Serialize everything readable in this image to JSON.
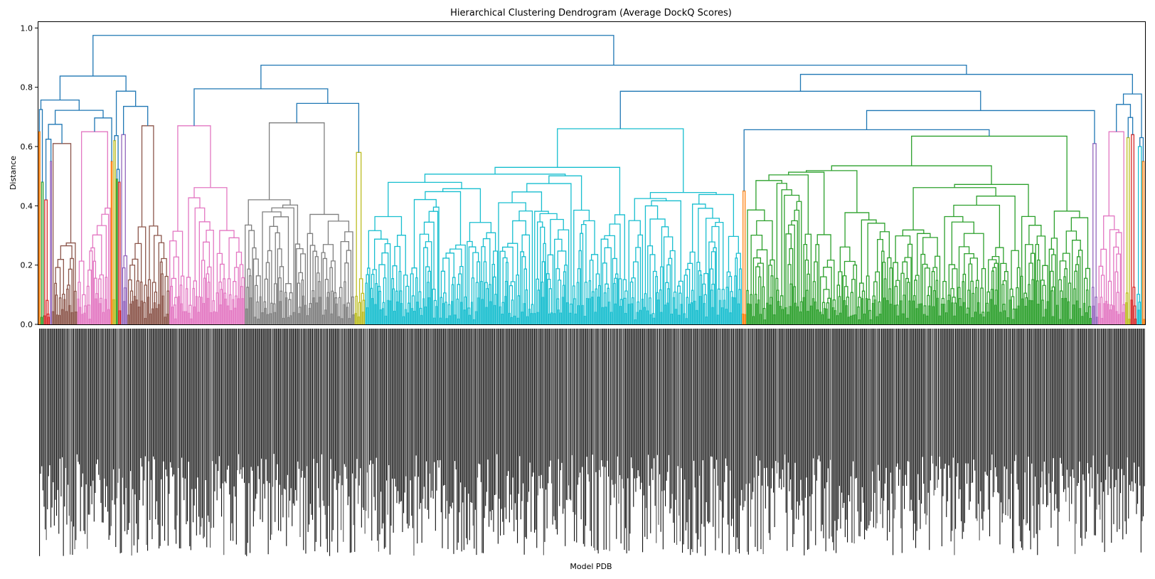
{
  "chart_data": {
    "type": "dendrogram",
    "title": "Hierarchical Clustering Dendrogram (Average DockQ Scores)",
    "xlabel": "Model PDB",
    "ylabel": "Distance",
    "ylim": [
      0,
      1.02
    ],
    "yticks": [
      0.0,
      0.2,
      0.4,
      0.6,
      0.8,
      1.0
    ],
    "ytick_labels": [
      "0.0",
      "0.2",
      "0.4",
      "0.6",
      "0.8",
      "1.0"
    ],
    "grid": false,
    "legend": "none",
    "root_height": 0.975,
    "cluster_threshold": 0.68,
    "colors": {
      "above_threshold": "#1f77b4",
      "orange": "#ff7f0e",
      "green": "#2ca02c",
      "red": "#d62728",
      "purple": "#9467bd",
      "brown": "#8c564b",
      "pink": "#e377c2",
      "gray": "#7f7f7f",
      "olive": "#bcbd22",
      "cyan": "#17becf"
    },
    "clusters": [
      {
        "color": "orange",
        "leaves": 2,
        "height": 0.65
      },
      {
        "color": "green",
        "leaves": 3,
        "height": 0.48
      },
      {
        "color": "red",
        "leaves": 6,
        "height": 0.42
      },
      {
        "color": "purple",
        "leaves": 2,
        "height": 0.55
      },
      {
        "color": "brown",
        "leaves": 24,
        "height": 0.61
      },
      {
        "color": "pink",
        "leaves": 32,
        "height": 0.65
      },
      {
        "color": "orange",
        "leaves": 2,
        "height": 0.55
      },
      {
        "color": "olive",
        "leaves": 3,
        "height": 0.62
      },
      {
        "color": "green",
        "leaves": 2,
        "height": 0.49
      },
      {
        "color": "red",
        "leaves": 3,
        "height": 0.48
      },
      {
        "color": "purple",
        "leaves": 6,
        "height": 0.64
      },
      {
        "color": "brown",
        "leaves": 40,
        "height": 0.67
      },
      {
        "color": "pink",
        "leaves": 72,
        "height": 0.67
      },
      {
        "color": "gray",
        "leaves": 105,
        "height": 0.68
      },
      {
        "color": "olive",
        "leaves": 10,
        "height": 0.58
      },
      {
        "color": "cyan",
        "leaves": 360,
        "height": 0.66
      },
      {
        "color": "orange",
        "leaves": 4,
        "height": 0.45
      },
      {
        "color": "green",
        "leaves": 330,
        "height": 0.635
      },
      {
        "color": "purple",
        "leaves": 6,
        "height": 0.61
      },
      {
        "color": "pink",
        "leaves": 26,
        "height": 0.65
      },
      {
        "color": "olive",
        "leaves": 5,
        "height": 0.63
      },
      {
        "color": "red",
        "leaves": 6,
        "height": 0.64
      },
      {
        "color": "cyan",
        "leaves": 5,
        "height": 0.6
      },
      {
        "color": "orange",
        "leaves": 3,
        "height": 0.55
      }
    ]
  }
}
